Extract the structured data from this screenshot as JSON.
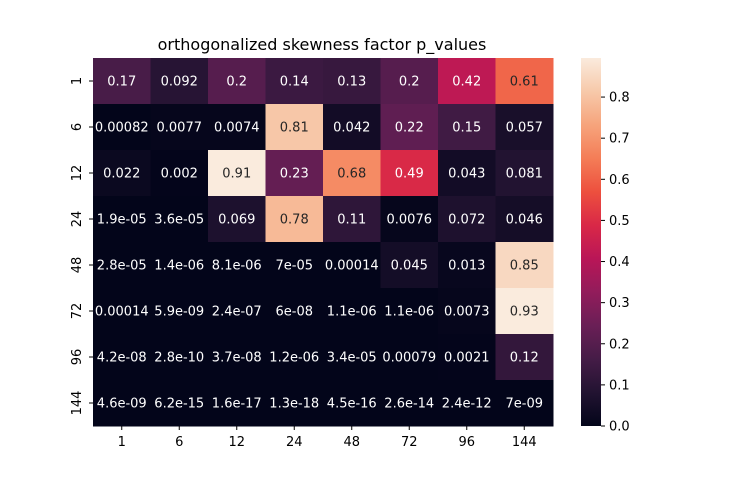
{
  "chart_data": {
    "type": "heatmap",
    "title": "orthogonalized skewness factor p_values",
    "xlabel": "",
    "ylabel": "",
    "x_categories": [
      "1",
      "6",
      "12",
      "24",
      "48",
      "72",
      "96",
      "144"
    ],
    "y_categories": [
      "1",
      "6",
      "12",
      "24",
      "48",
      "72",
      "96",
      "144"
    ],
    "values": [
      [
        0.17,
        0.092,
        0.2,
        0.14,
        0.13,
        0.2,
        0.42,
        0.61
      ],
      [
        0.00082,
        0.0077,
        0.0074,
        0.81,
        0.042,
        0.22,
        0.15,
        0.057
      ],
      [
        0.022,
        0.002,
        0.91,
        0.23,
        0.68,
        0.49,
        0.043,
        0.081
      ],
      [
        1.9e-05,
        3.6e-05,
        0.069,
        0.78,
        0.11,
        0.0076,
        0.072,
        0.046
      ],
      [
        2.8e-05,
        1.4e-06,
        8.1e-06,
        7e-05,
        0.00014,
        0.045,
        0.013,
        0.85
      ],
      [
        0.00014,
        5.9e-09,
        2.4e-07,
        6e-08,
        1.1e-06,
        1.1e-06,
        0.0073,
        0.93
      ],
      [
        4.2e-08,
        2.8e-10,
        3.7e-08,
        1.2e-06,
        3.4e-05,
        0.00079,
        0.0021,
        0.12
      ],
      [
        4.6e-09,
        6.2e-15,
        1.6e-17,
        1.3e-18,
        4.5e-16,
        2.6e-14,
        2.4e-12,
        7e-09
      ]
    ],
    "annotations": [
      [
        "0.17",
        "0.092",
        "0.2",
        "0.14",
        "0.13",
        "0.2",
        "0.42",
        "0.61"
      ],
      [
        "0.00082",
        "0.0077",
        "0.0074",
        "0.81",
        "0.042",
        "0.22",
        "0.15",
        "0.057"
      ],
      [
        "0.022",
        "0.002",
        "0.91",
        "0.23",
        "0.68",
        "0.49",
        "0.043",
        "0.081"
      ],
      [
        "1.9e-05",
        "3.6e-05",
        "0.069",
        "0.78",
        "0.11",
        "0.0076",
        "0.072",
        "0.046"
      ],
      [
        "2.8e-05",
        "1.4e-06",
        "8.1e-06",
        "7e-05",
        "0.00014",
        "0.045",
        "0.013",
        "0.85"
      ],
      [
        "0.00014",
        "5.9e-09",
        "2.4e-07",
        "6e-08",
        "1.1e-06",
        "1.1e-06",
        "0.0073",
        "0.93"
      ],
      [
        "4.2e-08",
        "2.8e-10",
        "3.7e-08",
        "1.2e-06",
        "3.4e-05",
        "0.00079",
        "0.0021",
        "0.12"
      ],
      [
        "4.6e-09",
        "6.2e-15",
        "1.6e-17",
        "1.3e-18",
        "4.5e-16",
        "2.6e-14",
        "2.4e-12",
        "7e-09"
      ]
    ],
    "colorbar": {
      "colormap": "rocket",
      "vmin": 0.0,
      "vmax": 0.895,
      "ticks": [
        0.0,
        0.1,
        0.2,
        0.3,
        0.4,
        0.5,
        0.6,
        0.7,
        0.8
      ],
      "tick_labels": [
        "0.0",
        "0.1",
        "0.2",
        "0.3",
        "0.4",
        "0.5",
        "0.6",
        "0.7",
        "0.8"
      ]
    },
    "colormap_stops": [
      "#03051a",
      "#221331",
      "#451c47",
      "#6a1f56",
      "#921c5b",
      "#b91657",
      "#d92847",
      "#ed503e",
      "#f47d57",
      "#f6a47c",
      "#f7c9aa",
      "#faebdd"
    ],
    "grid": false,
    "legend": "colorbar-right"
  }
}
